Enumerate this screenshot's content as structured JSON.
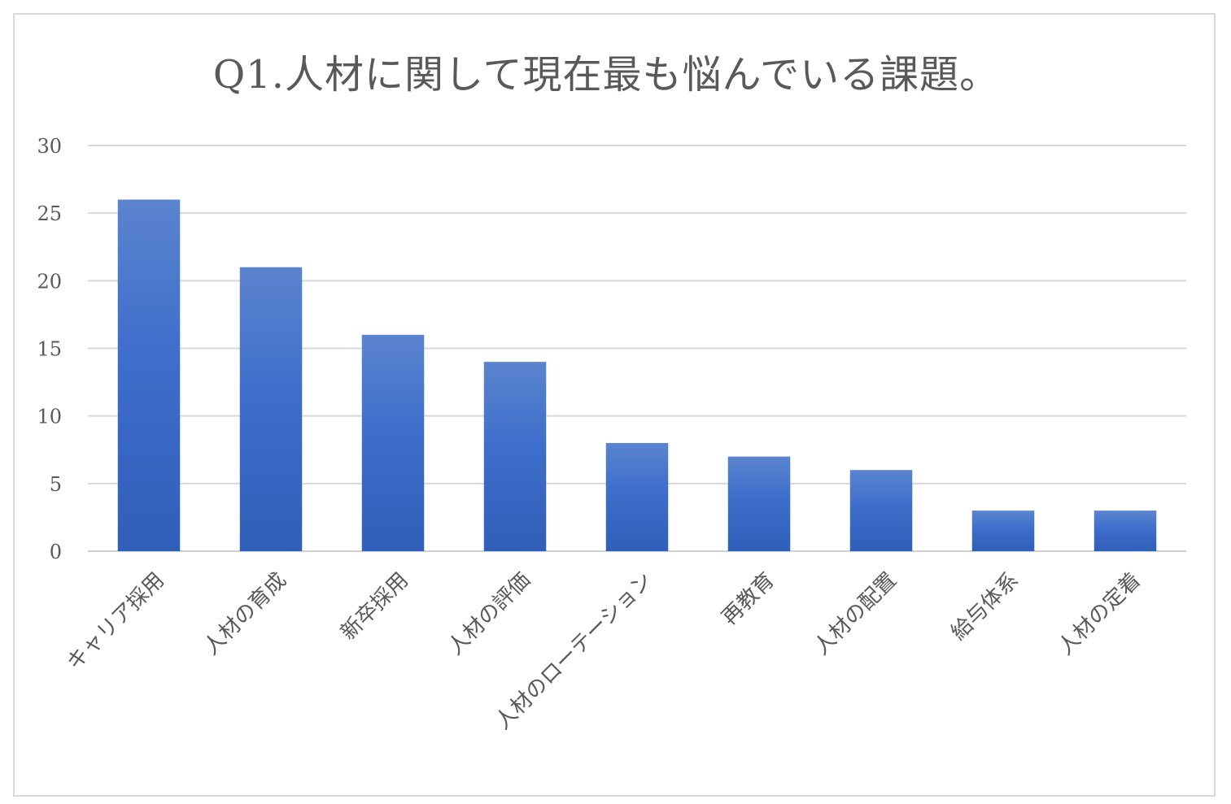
{
  "chart_data": {
    "type": "bar",
    "title": "Q1.人材に関して現在最も悩んでいる課題。",
    "categories": [
      "キャリア採用",
      "人材の育成",
      "新卒採用",
      "人材の評価",
      "人材のローテーション",
      "再教育",
      "人材の配置",
      "給与体系",
      "人材の定着"
    ],
    "values": [
      26,
      21,
      16,
      14,
      8,
      7,
      6,
      3,
      3
    ],
    "ylim": [
      0,
      30
    ],
    "yticks": [
      0,
      5,
      10,
      15,
      20,
      25,
      30
    ],
    "grid": true,
    "bar_color": "#4472c4"
  }
}
